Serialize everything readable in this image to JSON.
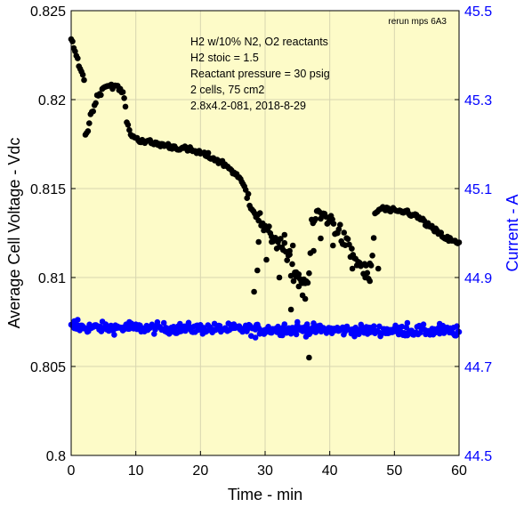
{
  "chart_data": {
    "type": "scatter",
    "tag": "rerun mps 6A3",
    "annotations": [
      "H2 w/10% N2, O2 reactants",
      "H2 stoic = 1.5",
      "Reactant pressure = 30 psig",
      "2 cells, 75 cm2",
      "2.8x4.2-081,  2018-8-29"
    ],
    "xlabel": "Time - min",
    "ylabel_left": "Average Cell Voltage - Vdc",
    "ylabel_right": "Current - A",
    "xlim": [
      0,
      60
    ],
    "ylim_left": [
      0.8,
      0.825
    ],
    "ylim_right": [
      44.5,
      45.5
    ],
    "x_ticks": [
      "0",
      "10",
      "20",
      "30",
      "40",
      "50",
      "60"
    ],
    "y_ticks_left": [
      "0.8",
      "0.805",
      "0.81",
      "0.815",
      "0.82",
      "0.825"
    ],
    "y_ticks_right": [
      "44.5",
      "44.7",
      "44.9",
      "45.1",
      "45.3",
      "45.5"
    ],
    "grid": true,
    "background_color": "#fdfbc8",
    "colors": {
      "voltage": "#000000",
      "current": "#0000ff"
    },
    "voltage_anchors": [
      [
        0.0,
        0.8233
      ],
      [
        0.3,
        0.823
      ],
      [
        0.6,
        0.8227
      ],
      [
        1.0,
        0.8222
      ],
      [
        1.4,
        0.8218
      ],
      [
        1.8,
        0.8214
      ],
      [
        2.1,
        0.821
      ],
      [
        2.2,
        0.818
      ],
      [
        2.6,
        0.8183
      ],
      [
        3.0,
        0.8191
      ],
      [
        3.5,
        0.8196
      ],
      [
        4.0,
        0.8201
      ],
      [
        4.5,
        0.8204
      ],
      [
        5.0,
        0.8207
      ],
      [
        5.5,
        0.8208
      ],
      [
        6.5,
        0.8208
      ],
      [
        7.5,
        0.8206
      ],
      [
        8.2,
        0.8202
      ],
      [
        8.5,
        0.819
      ],
      [
        9.0,
        0.8182
      ],
      [
        10.0,
        0.8178
      ],
      [
        12.0,
        0.8176
      ],
      [
        15.0,
        0.8174
      ],
      [
        18.0,
        0.8172
      ],
      [
        20.0,
        0.817
      ],
      [
        22.0,
        0.8167
      ],
      [
        24.0,
        0.8163
      ],
      [
        25.5,
        0.8158
      ],
      [
        26.5,
        0.8153
      ],
      [
        27.5,
        0.8145
      ],
      [
        28.5,
        0.8137
      ],
      [
        29.5,
        0.813
      ],
      [
        30.5,
        0.8124
      ],
      [
        31.5,
        0.8122
      ],
      [
        32.5,
        0.8118
      ],
      [
        33.5,
        0.811
      ],
      [
        34.5,
        0.8102
      ],
      [
        35.5,
        0.81
      ],
      [
        36.0,
        0.8098
      ],
      [
        36.8,
        0.8097
      ],
      [
        37.2,
        0.813
      ],
      [
        38.0,
        0.8135
      ],
      [
        39.0,
        0.8135
      ],
      [
        40.0,
        0.8133
      ],
      [
        41.0,
        0.8128
      ],
      [
        42.0,
        0.8122
      ],
      [
        43.0,
        0.8116
      ],
      [
        44.0,
        0.811
      ],
      [
        45.0,
        0.8106
      ],
      [
        46.0,
        0.8102
      ],
      [
        46.5,
        0.8105
      ],
      [
        47.0,
        0.8136
      ],
      [
        48.0,
        0.8139
      ],
      [
        50.0,
        0.8137
      ],
      [
        52.0,
        0.8137
      ],
      [
        54.0,
        0.8133
      ],
      [
        56.0,
        0.8127
      ],
      [
        58.0,
        0.8122
      ],
      [
        60.0,
        0.8119
      ]
    ],
    "voltage_outliers": [
      [
        28.3,
        0.8092
      ],
      [
        28.8,
        0.8104
      ],
      [
        30.2,
        0.811
      ],
      [
        31.0,
        0.8123
      ],
      [
        32.2,
        0.81
      ],
      [
        33.0,
        0.8124
      ],
      [
        34.3,
        0.8118
      ],
      [
        34.8,
        0.8103
      ],
      [
        35.8,
        0.809
      ],
      [
        36.2,
        0.8088
      ],
      [
        36.8,
        0.8055
      ],
      [
        34.0,
        0.8082
      ],
      [
        35.2,
        0.8095
      ],
      [
        37.5,
        0.8115
      ],
      [
        38.6,
        0.8122
      ],
      [
        40.5,
        0.8118
      ],
      [
        43.5,
        0.8105
      ],
      [
        45.5,
        0.81
      ],
      [
        46.2,
        0.8098
      ],
      [
        47.5,
        0.8105
      ],
      [
        29.0,
        0.812
      ],
      [
        33.8,
        0.8115
      ]
    ],
    "current_mean_start": 44.788,
    "current_mean_end": 44.779,
    "current_spread": 0.012,
    "current_outliers": [
      [
        0.5,
        44.802
      ],
      [
        1.0,
        44.805
      ],
      [
        9.0,
        44.8
      ],
      [
        28.5,
        44.765
      ],
      [
        35.0,
        44.8
      ],
      [
        36.5,
        44.795
      ],
      [
        52.0,
        44.798
      ],
      [
        57.0,
        44.796
      ],
      [
        59.5,
        44.77
      ],
      [
        33.0,
        44.795
      ]
    ]
  }
}
